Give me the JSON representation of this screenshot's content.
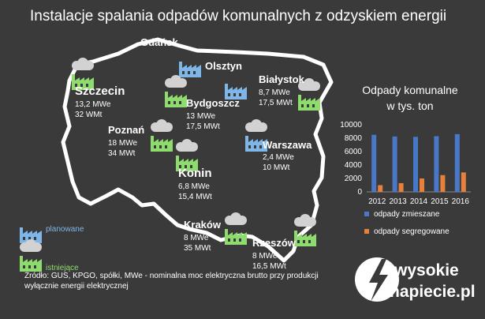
{
  "title": "Instalacje spalania odpadów komunalnych z odzyskiem energii",
  "colors": {
    "background": "#3a3a3a",
    "planned": "#7fb6e8",
    "existing": "#8fdc6e",
    "cloud": "#d2d2d2",
    "series_mixed": "#4a78c9",
    "series_segregated": "#e8803a"
  },
  "cities": [
    {
      "key": "gdansk",
      "name": "Gdańsk",
      "status": "planowane",
      "lines": []
    },
    {
      "key": "olsztyn",
      "name": "Olsztyn",
      "status": "planowane",
      "lines": []
    },
    {
      "key": "szczecin",
      "name": "Szczecin",
      "status": "istniejące",
      "lines": [
        "13,2 MWe",
        "32 WMt"
      ]
    },
    {
      "key": "bialystok",
      "name": "Białystok",
      "status": "istniejące",
      "lines": [
        "8,7 MWe",
        "17,5 MWt"
      ]
    },
    {
      "key": "bydgoszcz",
      "name": "Bydgoszcz",
      "status": "istniejące",
      "lines": [
        "13 MWe",
        "17,5 MWt"
      ]
    },
    {
      "key": "poznan",
      "name": "Poznań",
      "status": "istniejące",
      "lines": [
        "18 MWe",
        "34 MWt"
      ]
    },
    {
      "key": "warszawa",
      "name": "Warszawa",
      "status": "planowane",
      "lines": [
        "2,4 MWe",
        "10 MWt"
      ]
    },
    {
      "key": "konin",
      "name": "Konin",
      "status": "istniejące",
      "lines": [
        "6,8 MWe",
        "15,4 MWt"
      ]
    },
    {
      "key": "krakow",
      "name": "Kraków",
      "status": "istniejące",
      "lines": [
        "8 MWe",
        "35 MWt"
      ]
    },
    {
      "key": "rzeszow",
      "name": "Rzeszów",
      "status": "istniejące",
      "lines": [
        "8 MWe",
        "16,5 MWt"
      ]
    }
  ],
  "legend": {
    "planned": "planowane",
    "existing": "istniejące"
  },
  "chart_data": {
    "type": "bar",
    "title": "Odpady komunalne w tys. ton",
    "title_lines": [
      "Odpady komunalne",
      "w tys. ton"
    ],
    "categories": [
      "2012",
      "2013",
      "2014",
      "2015",
      "2016"
    ],
    "series": [
      {
        "name": "odpady zmieszane",
        "values": [
          8500,
          8250,
          8200,
          8300,
          8600
        ],
        "color": "#4a78c9"
      },
      {
        "name": "odpady segregowane",
        "values": [
          1000,
          1300,
          2000,
          2500,
          2900
        ],
        "color": "#e8803a"
      }
    ],
    "ylim": [
      0,
      10000
    ],
    "yticks": [
      "0",
      "2000",
      "4000",
      "6000",
      "8000",
      "10000"
    ],
    "legend_position": "bottom"
  },
  "source": {
    "line1": "Źródło: GUS, KPGO, spółki, MWe - nominalna moc elektryczna brutto przy produkcji",
    "line2": "wyłącznie energii elektrycznej"
  },
  "logo": {
    "top": "wysokie",
    "bottom": "napiecie.pl"
  }
}
